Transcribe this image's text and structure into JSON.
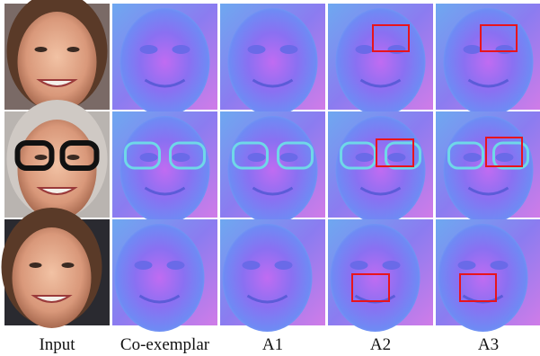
{
  "figure": {
    "columns": [
      "Input",
      "Co-exemplar",
      "A1",
      "A2",
      "A3"
    ]
  }
}
